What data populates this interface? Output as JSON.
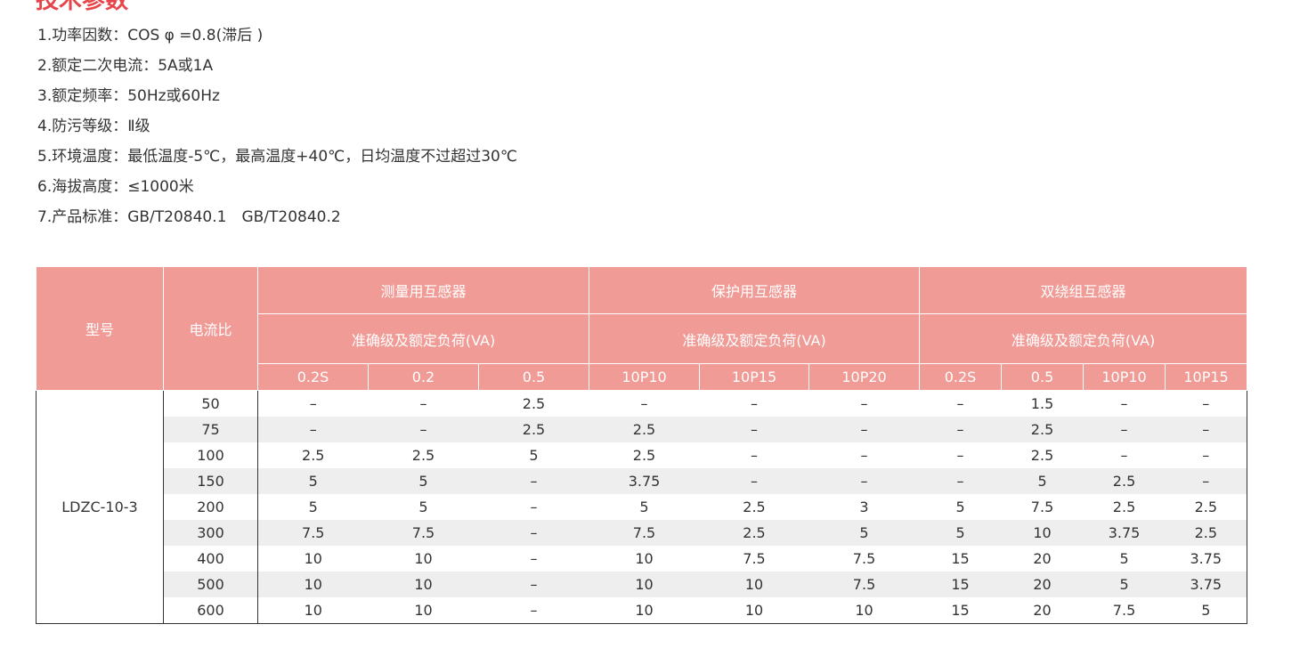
{
  "heading": "技术参数",
  "specs": [
    "1.功率因数：COS φ =0.8(滞后 )",
    "2.额定二次电流：5A或1A",
    "3.额定频率：50Hz或60Hz",
    "4.防污等级：Ⅱ级",
    "5.环境温度：最低温度-5℃，最高温度+40℃，日均温度不过超过30℃",
    "6.海拔高度：≤1000米",
    "7.产品标准：GB/T20840.1　GB/T20840.2"
  ],
  "table": {
    "model_header": "型号",
    "ratio_header": "电流比",
    "groups": [
      "测量用互感器",
      "保护用互感器",
      "双绕组互感器"
    ],
    "sub_headers": [
      "准确级及额定负荷(VA)",
      "准确级及额定负荷(VA)",
      "准确级及额定负荷(VA)"
    ],
    "columns": [
      "0.2S",
      "0.2",
      "0.5",
      "10P10",
      "10P15",
      "10P20",
      "0.2S",
      "0.5",
      "10P10",
      "10P15"
    ],
    "model": "LDZC-10-3",
    "rows": [
      {
        "ratio": 50,
        "values": [
          "–",
          "–",
          2.5,
          "–",
          "–",
          "–",
          "–",
          1.5,
          "–",
          "–"
        ]
      },
      {
        "ratio": 75,
        "values": [
          "–",
          "–",
          2.5,
          2.5,
          "–",
          "–",
          "–",
          2.5,
          "–",
          "–"
        ]
      },
      {
        "ratio": 100,
        "values": [
          2.5,
          2.5,
          5,
          2.5,
          "–",
          "–",
          "–",
          2.5,
          "–",
          "–"
        ]
      },
      {
        "ratio": 150,
        "values": [
          5,
          5,
          "–",
          3.75,
          "–",
          "–",
          "–",
          5,
          2.5,
          "–"
        ]
      },
      {
        "ratio": 200,
        "values": [
          5,
          5,
          "–",
          5,
          2.5,
          3,
          5,
          7.5,
          2.5,
          2.5
        ]
      },
      {
        "ratio": 300,
        "values": [
          7.5,
          7.5,
          "–",
          7.5,
          2.5,
          5,
          5,
          10,
          3.75,
          2.5
        ]
      },
      {
        "ratio": 400,
        "values": [
          10,
          10,
          "–",
          10,
          7.5,
          7.5,
          15,
          20,
          5,
          3.75
        ]
      },
      {
        "ratio": 500,
        "values": [
          10,
          10,
          "–",
          10,
          10,
          7.5,
          15,
          20,
          5,
          3.75
        ]
      },
      {
        "ratio": 600,
        "values": [
          10,
          10,
          "–",
          10,
          10,
          10,
          15,
          20,
          7.5,
          5
        ]
      }
    ]
  }
}
